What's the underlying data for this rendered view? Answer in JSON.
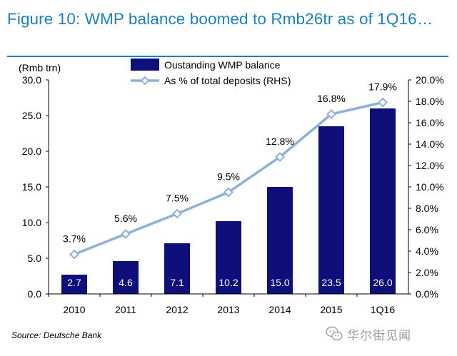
{
  "title": "Figure 10: WMP balance boomed to Rmb26tr as of 1Q16…",
  "source": "Source: Deutsche Bank",
  "watermark": "华尔街见闻",
  "colors": {
    "title": "#1b7fc1",
    "bar": "#0e0f7a",
    "line": "#8fb0dc",
    "marker_fill": "#ffffff"
  },
  "chart_data": {
    "type": "bar",
    "categories": [
      "2010",
      "2011",
      "2012",
      "2013",
      "2014",
      "2015",
      "1Q16"
    ],
    "series": [
      {
        "name": "Oustanding WMP balance",
        "type": "bar",
        "axis": "left",
        "values": [
          2.7,
          4.6,
          7.1,
          10.2,
          15.0,
          23.5,
          26.0
        ],
        "labels": [
          "2.7",
          "4.6",
          "7.1",
          "10.2",
          "15.0",
          "23.5",
          "26.0"
        ]
      },
      {
        "name": "As % of total deposits (RHS)",
        "type": "line",
        "axis": "right",
        "values": [
          3.7,
          5.6,
          7.5,
          9.5,
          12.8,
          16.8,
          17.9
        ],
        "labels": [
          "3.7%",
          "5.6%",
          "7.5%",
          "9.5%",
          "12.8%",
          "16.8%",
          "17.9%"
        ]
      }
    ],
    "ylabel": "(Rmb trn)",
    "ylim": [
      0,
      30
    ],
    "y_ticks": [
      "0.0",
      "5.0",
      "10.0",
      "15.0",
      "20.0",
      "25.0",
      "30.0"
    ],
    "y2lim": [
      0,
      20
    ],
    "y2_ticks": [
      "0.0%",
      "2.0%",
      "4.0%",
      "6.0%",
      "8.0%",
      "10.0%",
      "12.0%",
      "14.0%",
      "16.0%",
      "18.0%",
      "20.0%"
    ],
    "legend_position": "top",
    "grid": false
  }
}
